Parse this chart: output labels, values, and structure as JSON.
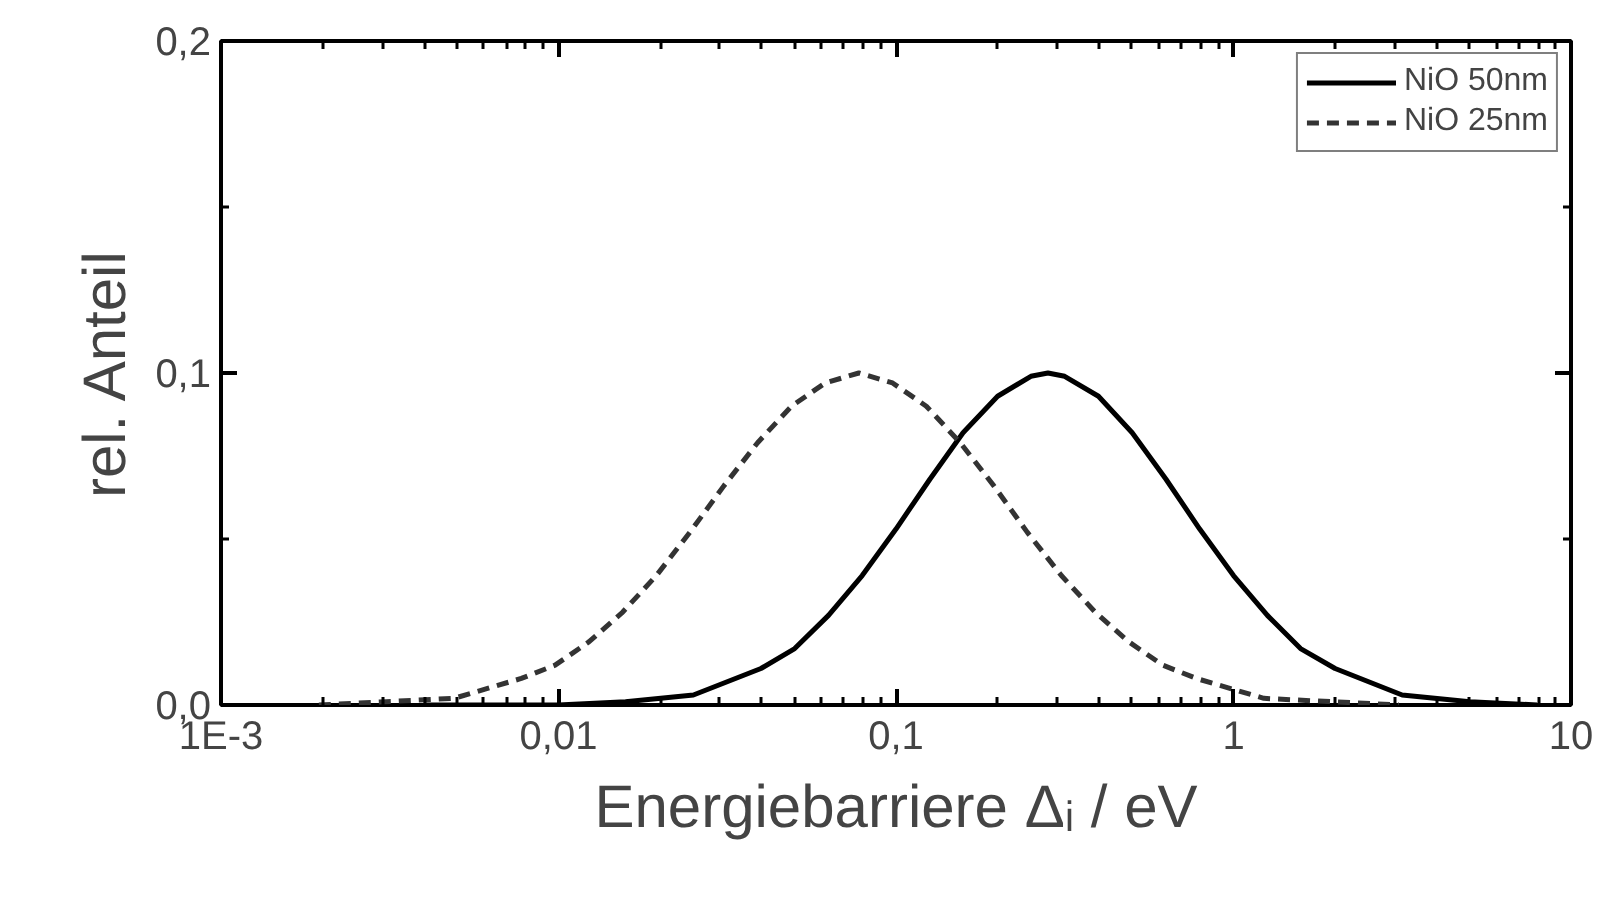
{
  "chart_data": {
    "type": "line",
    "xlabel": "Energiebarriere Δᵢ / eV",
    "ylabel": "rel. Anteil",
    "log": "x",
    "xlim": [
      0.001,
      10
    ],
    "xticks": [
      {
        "value": 0.001,
        "label": "1E-3"
      },
      {
        "value": 0.01,
        "label": "0,01"
      },
      {
        "value": 0.1,
        "label": "0,1"
      },
      1,
      10
    ],
    "ylim": [
      0,
      0.2
    ],
    "yticks": [
      {
        "value": 0,
        "label": "0,0"
      },
      {
        "value": 0.1,
        "label": "0,1"
      },
      {
        "value": 0.2,
        "label": "0,2"
      }
    ],
    "grid": false,
    "legend": "top right",
    "marker": "none",
    "series": [
      {
        "name": "NiO 50nm",
        "color": "#000000",
        "line_style": "solid",
        "x": [
          0.00398,
          0.01,
          0.0158,
          0.0251,
          0.0398,
          0.0501,
          0.0631,
          0.0794,
          0.1,
          0.126,
          0.158,
          0.2,
          0.251,
          0.282,
          0.316,
          0.398,
          0.501,
          0.631,
          0.794,
          1,
          1.26,
          1.58,
          2,
          3.16,
          5.01,
          7.94
        ],
        "values": [
          0,
          0,
          0.001,
          0.003,
          0.011,
          0.017,
          0.027,
          0.039,
          0.053,
          0.068,
          0.082,
          0.093,
          0.099,
          0.1,
          0.099,
          0.093,
          0.082,
          0.068,
          0.053,
          0.039,
          0.027,
          0.017,
          0.011,
          0.003,
          0.001,
          0
        ]
      },
      {
        "name": "NiO 25nm",
        "color": "#333333",
        "line_style": "dashed",
        "x": [
          0.00195,
          0.00309,
          0.0049,
          0.00776,
          0.00977,
          0.0123,
          0.0155,
          0.0195,
          0.0245,
          0.0309,
          0.0389,
          0.049,
          0.0617,
          0.0776,
          0.0977,
          0.123,
          0.155,
          0.195,
          0.245,
          0.309,
          0.389,
          0.49,
          0.617,
          0.776,
          1.23,
          1.95,
          3.09
        ],
        "values": [
          0,
          0.001,
          0.002,
          0.008,
          0.012,
          0.019,
          0.028,
          0.039,
          0.052,
          0.066,
          0.079,
          0.09,
          0.097,
          0.1,
          0.097,
          0.09,
          0.079,
          0.066,
          0.052,
          0.039,
          0.028,
          0.019,
          0.012,
          0.008,
          0.002,
          0.001,
          0
        ]
      }
    ]
  }
}
